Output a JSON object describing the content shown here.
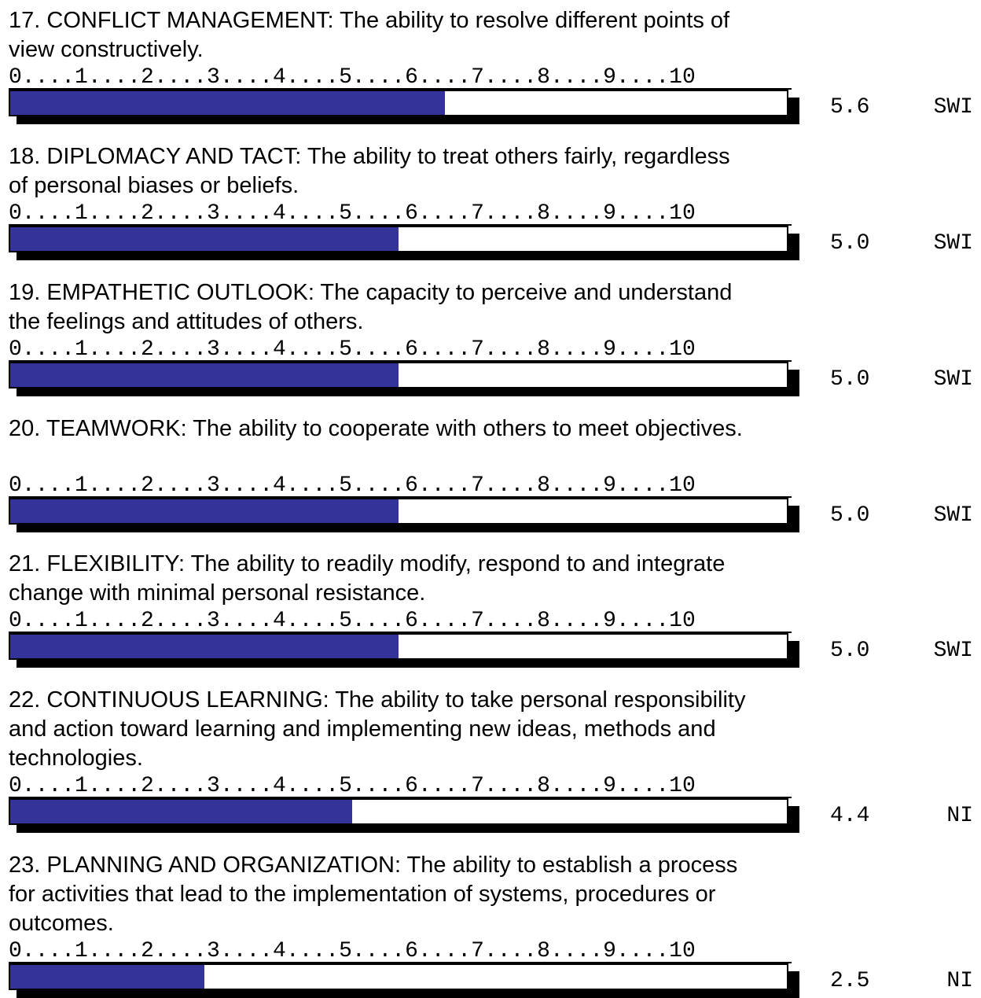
{
  "scale_text": "0....1....2....3....4....5....6....7....8....9....10",
  "scale_max": 10,
  "fill_color": "#333399",
  "items": [
    {
      "text": "17.  CONFLICT MANAGEMENT: The ability to resolve different points of view constructively.",
      "score": 5.6,
      "score_label": "5.6",
      "rating": "SWI"
    },
    {
      "text": "18.  DIPLOMACY AND TACT: The ability to treat others fairly, regardless of personal biases or beliefs.",
      "score": 5.0,
      "score_label": "5.0",
      "rating": "SWI"
    },
    {
      "text": "19.  EMPATHETIC OUTLOOK: The capacity to perceive and understand the feelings and attitudes of others.",
      "score": 5.0,
      "score_label": "5.0",
      "rating": "SWI"
    },
    {
      "text": "20.  TEAMWORK: The ability to cooperate with others to meet objectives.",
      "score": 5.0,
      "score_label": "5.0",
      "rating": "SWI"
    },
    {
      "text": "21.  FLEXIBILITY: The ability to readily modify, respond to and integrate change with minimal personal resistance.",
      "score": 5.0,
      "score_label": "5.0",
      "rating": "SWI"
    },
    {
      "text": "22.  CONTINUOUS LEARNING: The ability to take personal responsibility and action toward learning and implementing new ideas, methods and technologies.",
      "score": 4.4,
      "score_label": "4.4",
      "rating": "NI"
    },
    {
      "text": "23.  PLANNING AND ORGANIZATION: The ability to establish a process for activities that lead to the implementation of systems, procedures or outcomes.",
      "score": 2.5,
      "score_label": "2.5",
      "rating": "NI"
    }
  ]
}
